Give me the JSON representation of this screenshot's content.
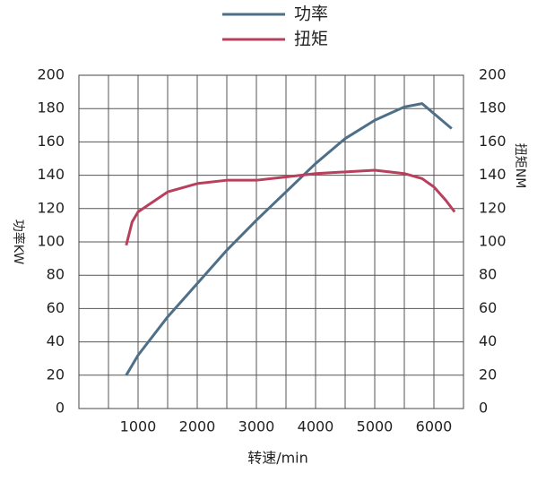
{
  "chart_data": {
    "type": "line",
    "x_label": "转速/min",
    "y_label": "功率KW",
    "y2_label": "扭矩NM",
    "xlim": [
      0,
      6500
    ],
    "xticks": [
      1000,
      2000,
      3000,
      4000,
      5000,
      6000
    ],
    "ylim": [
      0,
      200
    ],
    "yticks": [
      0,
      20,
      40,
      60,
      80,
      100,
      120,
      140,
      160,
      180,
      200
    ],
    "y2lim": [
      0,
      200
    ],
    "y2ticks": [
      0,
      20,
      40,
      60,
      80,
      100,
      120,
      140,
      160,
      180,
      200
    ],
    "grid": true,
    "legend": "top",
    "series": [
      {
        "name": "功率",
        "color": "#4d6f88",
        "x": [
          800,
          1000,
          1500,
          2000,
          2500,
          3000,
          3500,
          4000,
          4500,
          5000,
          5500,
          5800,
          6000,
          6300
        ],
        "values": [
          20,
          32,
          55,
          75,
          95,
          113,
          130,
          147,
          162,
          173,
          181,
          183,
          177,
          168
        ]
      },
      {
        "name": "扭矩",
        "color": "#b8405c",
        "axis": "y2",
        "x": [
          800,
          900,
          1000,
          1500,
          2000,
          2500,
          3000,
          3500,
          4000,
          4500,
          5000,
          5500,
          5800,
          6000,
          6200,
          6350
        ],
        "values": [
          98,
          112,
          118,
          130,
          135,
          137,
          137,
          139,
          141,
          142,
          143,
          141,
          138,
          133,
          125,
          118
        ]
      }
    ]
  }
}
